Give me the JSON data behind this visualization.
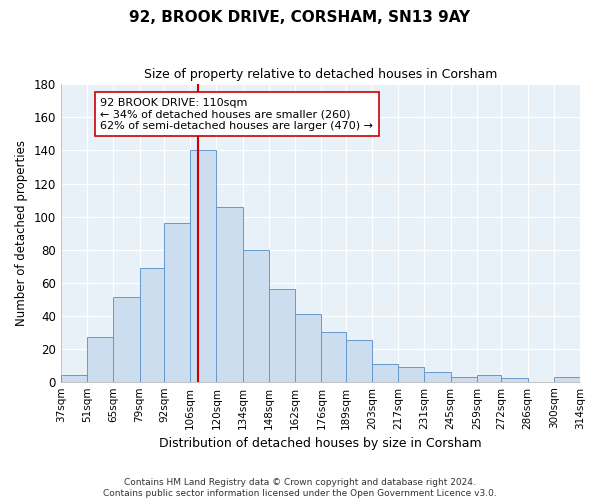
{
  "title": "92, BROOK DRIVE, CORSHAM, SN13 9AY",
  "subtitle": "Size of property relative to detached houses in Corsham",
  "xlabel": "Distribution of detached houses by size in Corsham",
  "ylabel": "Number of detached properties",
  "bar_color": "#ccddf0",
  "bar_edge_color": "#6699cc",
  "background_color": "#e8f0f8",
  "plot_bg_color": "#e8f0f8",
  "outer_bg_color": "#ffffff",
  "grid_color": "#ffffff",
  "annotation_box_color": "#ffffff",
  "annotation_box_edge": "#cc0000",
  "vline_color": "#cc0000",
  "vline_x": 110,
  "annotation_title": "92 BROOK DRIVE: 110sqm",
  "annotation_line1": "← 34% of detached houses are smaller (260)",
  "annotation_line2": "62% of semi-detached houses are larger (470) →",
  "bins": [
    37,
    51,
    65,
    79,
    92,
    106,
    120,
    134,
    148,
    162,
    176,
    189,
    203,
    217,
    231,
    245,
    259,
    272,
    286,
    300,
    314
  ],
  "counts": [
    4,
    27,
    51,
    69,
    96,
    140,
    106,
    80,
    56,
    41,
    30,
    25,
    11,
    9,
    6,
    3,
    4,
    2,
    0,
    3
  ],
  "ylim": [
    0,
    180
  ],
  "yticks": [
    0,
    20,
    40,
    60,
    80,
    100,
    120,
    140,
    160,
    180
  ],
  "footer_line1": "Contains HM Land Registry data © Crown copyright and database right 2024.",
  "footer_line2": "Contains public sector information licensed under the Open Government Licence v3.0."
}
